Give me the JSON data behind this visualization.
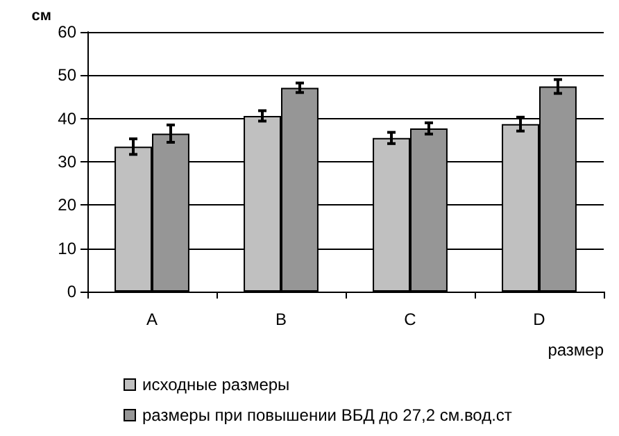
{
  "chart_data": {
    "type": "bar",
    "xlabel": "размер",
    "ylabel": "см",
    "categories": [
      "A",
      "B",
      "C",
      "D"
    ],
    "series": [
      {
        "name": "исходные размеры",
        "color": "#c0c0c0",
        "values": [
          33.5,
          40.6,
          35.5,
          38.7
        ],
        "errors": [
          1.8,
          1.2,
          1.3,
          1.6
        ]
      },
      {
        "name": "размеры при повышении ВБД до 27,2 см.вод.ст",
        "color": "#969696",
        "values": [
          36.5,
          47.1,
          37.7,
          47.4
        ],
        "errors": [
          2.0,
          1.1,
          1.3,
          1.6
        ]
      }
    ],
    "ylim": [
      0,
      60
    ],
    "yticks": [
      0,
      10,
      20,
      30,
      40,
      50,
      60
    ],
    "grid": "y",
    "legend": "bottom left"
  }
}
